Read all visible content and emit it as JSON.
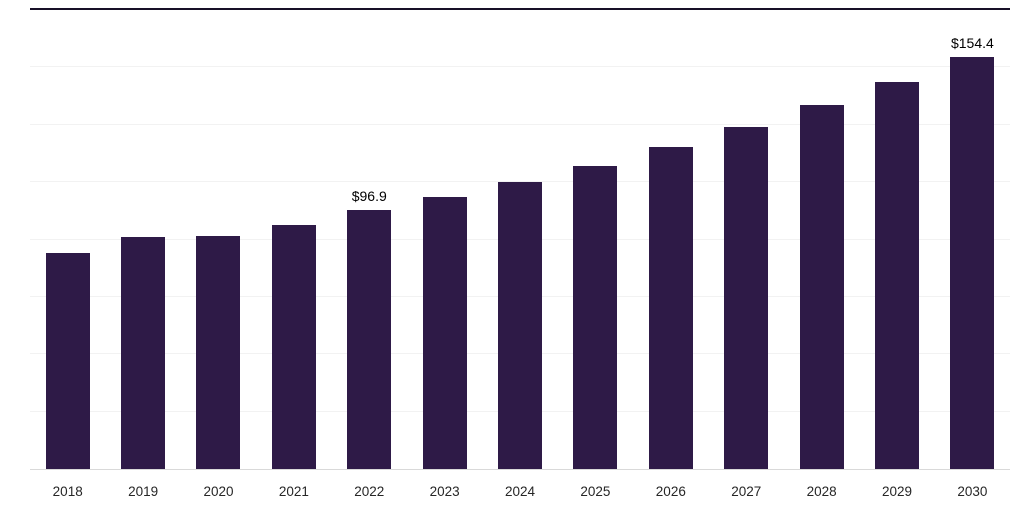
{
  "chart_data": {
    "type": "bar",
    "title": "",
    "xlabel": "",
    "ylabel": "",
    "categories": [
      "2018",
      "2019",
      "2020",
      "2021",
      "2022",
      "2023",
      "2024",
      "2025",
      "2026",
      "2027",
      "2028",
      "2029",
      "2030"
    ],
    "values": [
      81.0,
      86.9,
      87.3,
      91.5,
      96.9,
      101.9,
      107.4,
      113.5,
      120.8,
      128.2,
      136.3,
      144.9,
      154.4
    ],
    "labeled_points": [
      {
        "category": "2022",
        "label": "$96.9"
      },
      {
        "category": "2030",
        "label": "$154.4"
      }
    ],
    "ylim": [
      0,
      172
    ],
    "grid": true,
    "legend": "none",
    "bar_color": "#2e1a47",
    "currency_prefix": "$"
  },
  "colors": {
    "bar": "#2e1a47",
    "background": "#ffffff",
    "gridline": "#f2f2f2",
    "axis_line": "#d9d9d9",
    "top_line": "#181028",
    "value_label_text": "#000000",
    "tick_label_text": "#262626"
  }
}
